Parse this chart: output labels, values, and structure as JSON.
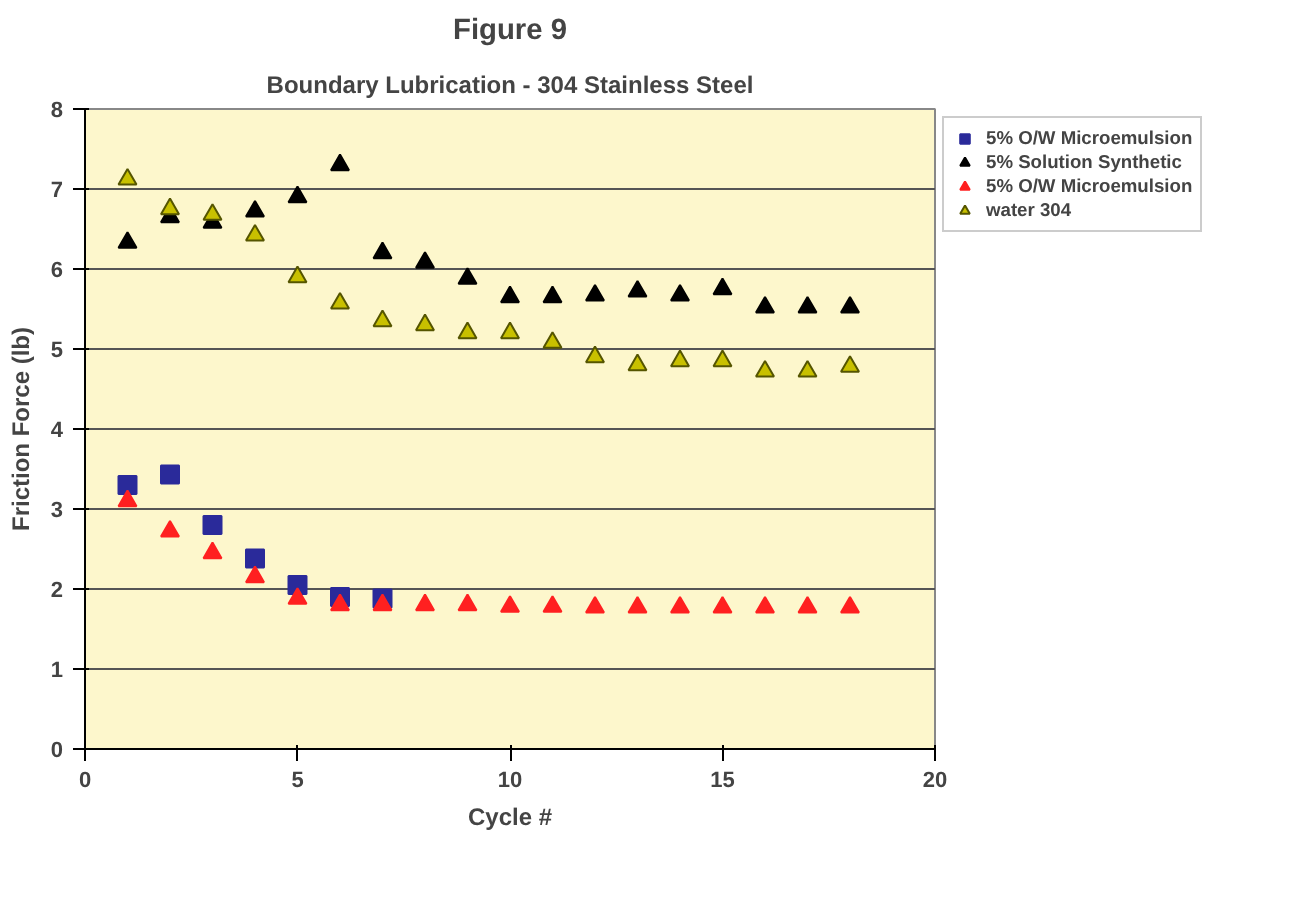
{
  "chart_data": {
    "type": "scatter",
    "title": "Figure 9",
    "subtitle": "Boundary Lubrication - 304 Stainless Steel",
    "xlabel": "Cycle #",
    "ylabel": "Friction Force (lb)",
    "xlim": [
      0,
      20
    ],
    "xticks": [
      0,
      5,
      10,
      15,
      20
    ],
    "ylim": [
      0,
      8
    ],
    "yticks": [
      0,
      1,
      2,
      3,
      4,
      5,
      6,
      7,
      8
    ],
    "grid": "y",
    "legend": "top right",
    "series": [
      {
        "name": "5% O/W Microemulsion",
        "color": "#2a2a9a",
        "marker": "square",
        "x": [
          1,
          2,
          3,
          4,
          5,
          6,
          7
        ],
        "values": [
          3.3,
          3.43,
          2.8,
          2.38,
          2.05,
          1.9,
          1.88
        ]
      },
      {
        "name": "5% Solution Synthetic",
        "color": "#000000",
        "marker": "triangle",
        "x": [
          1,
          2,
          3,
          4,
          5,
          6,
          7,
          8,
          9,
          10,
          11,
          12,
          13,
          14,
          15,
          16,
          17,
          18
        ],
        "values": [
          6.33,
          6.65,
          6.58,
          6.72,
          6.9,
          7.3,
          6.2,
          6.08,
          5.88,
          5.65,
          5.65,
          5.67,
          5.72,
          5.67,
          5.75,
          5.52,
          5.52,
          5.52
        ]
      },
      {
        "name": "5% O/W Microemulsion",
        "color": "#ff2020",
        "marker": "triangle",
        "x": [
          1,
          2,
          3,
          4,
          5,
          6,
          7,
          8,
          9,
          10,
          11,
          12,
          13,
          14,
          15,
          16,
          17,
          18
        ],
        "values": [
          3.1,
          2.72,
          2.45,
          2.15,
          1.88,
          1.8,
          1.8,
          1.8,
          1.8,
          1.78,
          1.78,
          1.77,
          1.77,
          1.77,
          1.77,
          1.77,
          1.77,
          1.77
        ]
      },
      {
        "name": "water 304",
        "color": "#c8c000",
        "marker": "triangle",
        "x": [
          1,
          2,
          3,
          4,
          5,
          6,
          7,
          8,
          9,
          10,
          11,
          12,
          13,
          14,
          15,
          16,
          17,
          18
        ],
        "values": [
          7.12,
          6.75,
          6.68,
          6.42,
          5.9,
          5.57,
          5.35,
          5.3,
          5.2,
          5.2,
          5.08,
          4.9,
          4.8,
          4.85,
          4.85,
          4.72,
          4.72,
          4.78
        ]
      }
    ]
  }
}
